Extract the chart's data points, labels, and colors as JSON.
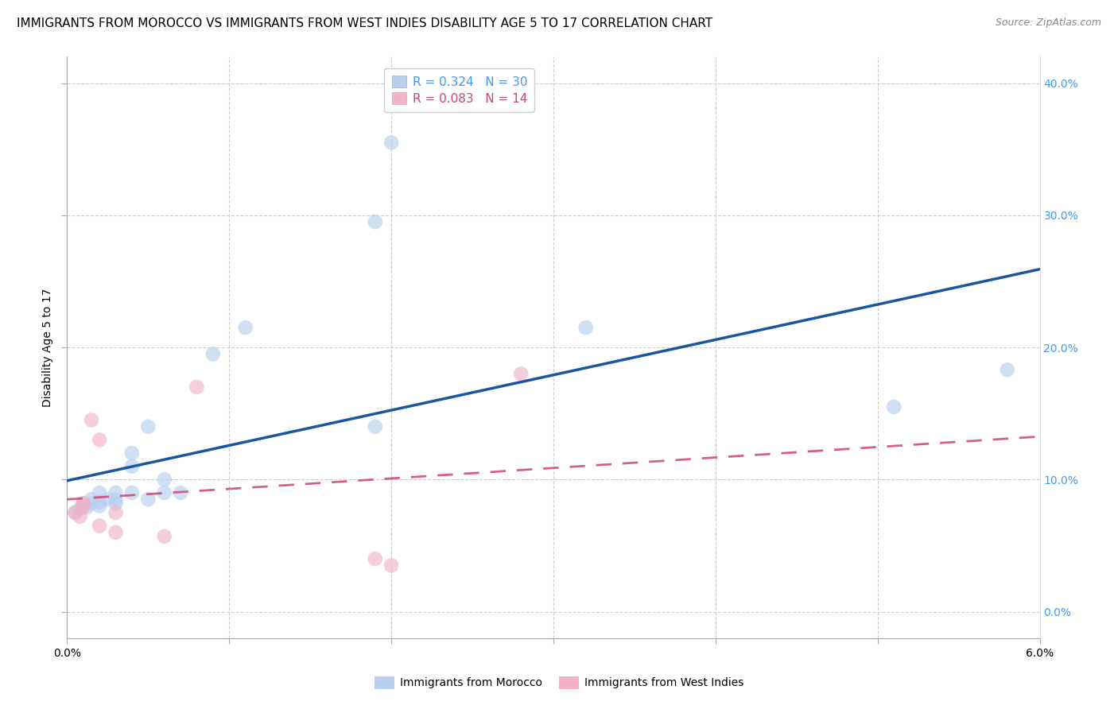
{
  "title": "IMMIGRANTS FROM MOROCCO VS IMMIGRANTS FROM WEST INDIES DISABILITY AGE 5 TO 17 CORRELATION CHART",
  "source": "Source: ZipAtlas.com",
  "ylabel": "Disability Age 5 to 17",
  "legend_morocco": "R = 0.324   N = 30",
  "legend_west_indies": "R = 0.083   N = 14",
  "xlim": [
    0.0,
    0.06
  ],
  "ylim": [
    -0.02,
    0.42
  ],
  "ytick_vals": [
    0.0,
    0.1,
    0.2,
    0.3,
    0.4
  ],
  "xtick_positions": [
    0.0,
    0.01,
    0.02,
    0.03,
    0.04,
    0.05,
    0.06
  ],
  "morocco_color": "#b8d0ed",
  "west_indies_color": "#f2b3c8",
  "morocco_line_color": "#1a56a0",
  "west_indies_line_color": "#cc4477",
  "background_color": "#ffffff",
  "morocco_x": [
    0.0005,
    0.0008,
    0.001,
    0.001,
    0.0012,
    0.0015,
    0.0015,
    0.002,
    0.002,
    0.002,
    0.0025,
    0.003,
    0.003,
    0.003,
    0.004,
    0.004,
    0.004,
    0.005,
    0.005,
    0.006,
    0.006,
    0.007,
    0.009,
    0.011,
    0.019,
    0.019,
    0.02,
    0.032,
    0.051,
    0.058
  ],
  "morocco_y": [
    0.075,
    0.078,
    0.08,
    0.082,
    0.079,
    0.082,
    0.085,
    0.08,
    0.083,
    0.09,
    0.085,
    0.082,
    0.085,
    0.09,
    0.09,
    0.11,
    0.12,
    0.085,
    0.14,
    0.09,
    0.1,
    0.09,
    0.195,
    0.215,
    0.14,
    0.295,
    0.355,
    0.215,
    0.155,
    0.183
  ],
  "west_indies_x": [
    0.0005,
    0.0008,
    0.001,
    0.001,
    0.0015,
    0.002,
    0.002,
    0.003,
    0.003,
    0.006,
    0.008,
    0.019,
    0.02,
    0.028
  ],
  "west_indies_y": [
    0.075,
    0.072,
    0.08,
    0.082,
    0.145,
    0.13,
    0.065,
    0.075,
    0.06,
    0.057,
    0.17,
    0.04,
    0.035,
    0.18
  ],
  "title_fontsize": 11,
  "label_fontsize": 10,
  "tick_fontsize": 10,
  "source_fontsize": 9,
  "legend_fontsize": 11,
  "marker_size": 180,
  "marker_alpha": 0.65
}
